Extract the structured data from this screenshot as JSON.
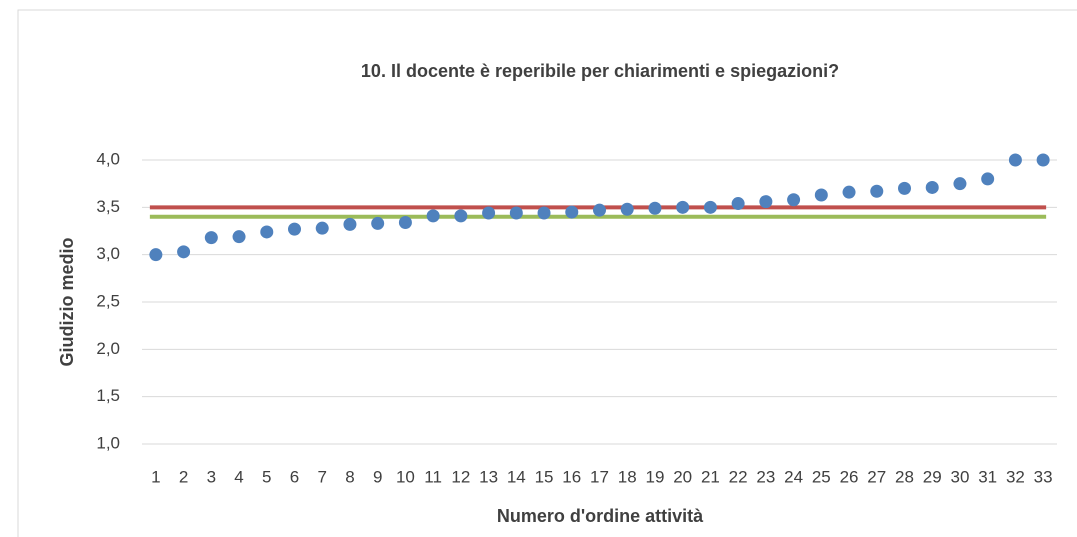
{
  "chart_data": {
    "type": "scatter",
    "title": "10. Il docente è reperibile per chiarimenti e spiegazioni?",
    "x_label": "Numero d'ordine attività",
    "y_label": "Giudizio medio",
    "categories": [
      "1",
      "2",
      "3",
      "4",
      "5",
      "6",
      "7",
      "8",
      "9",
      "10",
      "11",
      "12",
      "13",
      "14",
      "15",
      "16",
      "17",
      "18",
      "19",
      "20",
      "21",
      "22",
      "23",
      "24",
      "25",
      "26",
      "27",
      "28",
      "29",
      "30",
      "31",
      "32",
      "33"
    ],
    "values": [
      3.0,
      3.03,
      3.18,
      3.19,
      3.24,
      3.27,
      3.28,
      3.32,
      3.33,
      3.34,
      3.41,
      3.41,
      3.44,
      3.44,
      3.44,
      3.45,
      3.47,
      3.48,
      3.49,
      3.5,
      3.5,
      3.54,
      3.56,
      3.58,
      3.63,
      3.66,
      3.67,
      3.7,
      3.71,
      3.75,
      3.8,
      4.0,
      4.0
    ],
    "color": "#4f81bd",
    "reference_lines": [
      {
        "value": 3.5,
        "color": "#c0504d"
      },
      {
        "value": 3.4,
        "color": "#9bbb59"
      }
    ],
    "ylim": [
      1.0,
      4.0
    ],
    "yticks": [
      {
        "value": 1.0,
        "label": "1,0"
      },
      {
        "value": 1.5,
        "label": "1,5"
      },
      {
        "value": 2.0,
        "label": "2,0"
      },
      {
        "value": 2.5,
        "label": "2,5"
      },
      {
        "value": 3.0,
        "label": "3,0"
      },
      {
        "value": 3.5,
        "label": "3,5"
      },
      {
        "value": 4.0,
        "label": "4,0"
      }
    ],
    "grid": true
  }
}
